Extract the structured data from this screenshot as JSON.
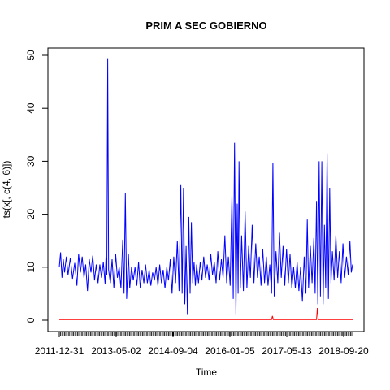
{
  "chart_data": {
    "type": "line",
    "title": "PRIM A SEC GOBIERNO",
    "xlabel": "Time",
    "ylabel": "ts(x[, c(4, 6)])",
    "ylim": [
      0,
      50
    ],
    "y_ticks": [
      0,
      10,
      20,
      30,
      40,
      50
    ],
    "x_tick_labels": [
      "2011-12-31",
      "2013-05-02",
      "2014-09-04",
      "2016-01-05",
      "2017-05-13",
      "2018-09-20"
    ],
    "legend": "none",
    "grid": false,
    "series": [
      {
        "color": "#0000ff",
        "points": [
          [
            0.0,
            10.0
          ],
          [
            0.03,
            12.8
          ],
          [
            0.06,
            8.0
          ],
          [
            0.09,
            11.5
          ],
          [
            0.12,
            9.0
          ],
          [
            0.16,
            12.0
          ],
          [
            0.2,
            8.5
          ],
          [
            0.25,
            11.8
          ],
          [
            0.3,
            7.8
          ],
          [
            0.35,
            10.8
          ],
          [
            0.4,
            6.5
          ],
          [
            0.44,
            12.5
          ],
          [
            0.48,
            9.0
          ],
          [
            0.52,
            12.0
          ],
          [
            0.56,
            8.0
          ],
          [
            0.6,
            10.5
          ],
          [
            0.64,
            5.5
          ],
          [
            0.68,
            11.5
          ],
          [
            0.72,
            9.0
          ],
          [
            0.76,
            12.2
          ],
          [
            0.8,
            7.5
          ],
          [
            0.84,
            10.5
          ],
          [
            0.88,
            7.0
          ],
          [
            0.92,
            10.5
          ],
          [
            0.96,
            8.0
          ],
          [
            1.0,
            11.0
          ],
          [
            1.04,
            6.8
          ],
          [
            1.06,
            12.0
          ],
          [
            1.08,
            8.5
          ],
          [
            1.1,
            49.3
          ],
          [
            1.12,
            9.5
          ],
          [
            1.16,
            7.0
          ],
          [
            1.2,
            11.5
          ],
          [
            1.24,
            6.0
          ],
          [
            1.28,
            12.5
          ],
          [
            1.32,
            8.0
          ],
          [
            1.36,
            10.0
          ],
          [
            1.4,
            6.0
          ],
          [
            1.44,
            15.2
          ],
          [
            1.47,
            5.0
          ],
          [
            1.5,
            24.0
          ],
          [
            1.53,
            4.0
          ],
          [
            1.57,
            12.5
          ],
          [
            1.6,
            6.0
          ],
          [
            1.64,
            10.0
          ],
          [
            1.68,
            7.5
          ],
          [
            1.72,
            10.0
          ],
          [
            1.76,
            6.5
          ],
          [
            1.8,
            11.0
          ],
          [
            1.84,
            6.0
          ],
          [
            1.88,
            9.5
          ],
          [
            1.92,
            7.0
          ],
          [
            1.96,
            10.5
          ],
          [
            2.0,
            7.0
          ],
          [
            2.04,
            9.5
          ],
          [
            2.08,
            6.5
          ],
          [
            2.12,
            9.0
          ],
          [
            2.16,
            7.5
          ],
          [
            2.2,
            10.0
          ],
          [
            2.24,
            6.5
          ],
          [
            2.28,
            10.5
          ],
          [
            2.32,
            7.0
          ],
          [
            2.36,
            9.5
          ],
          [
            2.4,
            6.0
          ],
          [
            2.44,
            10.0
          ],
          [
            2.48,
            7.5
          ],
          [
            2.52,
            11.5
          ],
          [
            2.56,
            5.0
          ],
          [
            2.6,
            12.0
          ],
          [
            2.64,
            7.0
          ],
          [
            2.68,
            15.0
          ],
          [
            2.72,
            5.5
          ],
          [
            2.76,
            25.5
          ],
          [
            2.79,
            5.0
          ],
          [
            2.82,
            25.0
          ],
          [
            2.85,
            3.0
          ],
          [
            2.88,
            14.0
          ],
          [
            2.91,
            1.0
          ],
          [
            2.94,
            19.5
          ],
          [
            2.97,
            5.0
          ],
          [
            3.0,
            18.5
          ],
          [
            3.03,
            7.0
          ],
          [
            3.06,
            11.0
          ],
          [
            3.09,
            6.5
          ],
          [
            3.12,
            10.5
          ],
          [
            3.16,
            7.0
          ],
          [
            3.2,
            11.0
          ],
          [
            3.24,
            7.5
          ],
          [
            3.28,
            12.0
          ],
          [
            3.32,
            8.0
          ],
          [
            3.36,
            10.5
          ],
          [
            3.4,
            7.5
          ],
          [
            3.44,
            12.5
          ],
          [
            3.48,
            8.5
          ],
          [
            3.52,
            11.0
          ],
          [
            3.56,
            7.0
          ],
          [
            3.6,
            13.0
          ],
          [
            3.64,
            7.5
          ],
          [
            3.68,
            11.5
          ],
          [
            3.72,
            8.0
          ],
          [
            3.76,
            16.0
          ],
          [
            3.8,
            7.0
          ],
          [
            3.84,
            12.0
          ],
          [
            3.88,
            6.5
          ],
          [
            3.92,
            23.5
          ],
          [
            3.95,
            4.0
          ],
          [
            3.98,
            33.5
          ],
          [
            4.01,
            1.0
          ],
          [
            4.04,
            22.0
          ],
          [
            4.06,
            5.0
          ],
          [
            4.08,
            30.0
          ],
          [
            4.11,
            6.0
          ],
          [
            4.14,
            16.0
          ],
          [
            4.18,
            5.5
          ],
          [
            4.22,
            20.5
          ],
          [
            4.26,
            6.0
          ],
          [
            4.3,
            14.0
          ],
          [
            4.34,
            8.0
          ],
          [
            4.38,
            18.0
          ],
          [
            4.42,
            7.0
          ],
          [
            4.46,
            14.5
          ],
          [
            4.5,
            8.0
          ],
          [
            4.54,
            12.0
          ],
          [
            4.58,
            6.5
          ],
          [
            4.62,
            13.5
          ],
          [
            4.66,
            7.0
          ],
          [
            4.7,
            12.0
          ],
          [
            4.74,
            6.5
          ],
          [
            4.78,
            10.5
          ],
          [
            4.82,
            5.0
          ],
          [
            4.85,
            29.7
          ],
          [
            4.88,
            4.5
          ],
          [
            4.92,
            13.0
          ],
          [
            4.96,
            7.0
          ],
          [
            5.0,
            16.5
          ],
          [
            5.04,
            8.0
          ],
          [
            5.08,
            14.0
          ],
          [
            5.12,
            6.5
          ],
          [
            5.16,
            13.5
          ],
          [
            5.2,
            7.0
          ],
          [
            5.24,
            12.5
          ],
          [
            5.28,
            6.0
          ],
          [
            5.32,
            10.0
          ],
          [
            5.36,
            6.0
          ],
          [
            5.4,
            11.0
          ],
          [
            5.44,
            5.5
          ],
          [
            5.48,
            10.0
          ],
          [
            5.52,
            3.5
          ],
          [
            5.56,
            12.0
          ],
          [
            5.6,
            5.0
          ],
          [
            5.63,
            19.0
          ],
          [
            5.66,
            6.0
          ],
          [
            5.7,
            14.0
          ],
          [
            5.74,
            7.0
          ],
          [
            5.78,
            15.5
          ],
          [
            5.81,
            5.0
          ],
          [
            5.84,
            22.5
          ],
          [
            5.87,
            3.0
          ],
          [
            5.9,
            30.0
          ],
          [
            5.93,
            4.5
          ],
          [
            5.96,
            30.0
          ],
          [
            5.99,
            3.0
          ],
          [
            6.02,
            18.0
          ],
          [
            6.05,
            6.0
          ],
          [
            6.08,
            31.5
          ],
          [
            6.11,
            4.0
          ],
          [
            6.14,
            25.0
          ],
          [
            6.17,
            7.0
          ],
          [
            6.2,
            13.0
          ],
          [
            6.24,
            7.5
          ],
          [
            6.28,
            16.0
          ],
          [
            6.32,
            8.0
          ],
          [
            6.36,
            13.0
          ],
          [
            6.4,
            7.0
          ],
          [
            6.44,
            14.5
          ],
          [
            6.48,
            8.0
          ],
          [
            6.52,
            12.0
          ],
          [
            6.56,
            8.5
          ],
          [
            6.6,
            15.0
          ],
          [
            6.63,
            9.0
          ],
          [
            6.66,
            10.5
          ]
        ]
      },
      {
        "color": "#ff0000",
        "points": [
          [
            0.0,
            0.1
          ],
          [
            4.82,
            0.1
          ],
          [
            4.84,
            0.8
          ],
          [
            4.86,
            0.1
          ],
          [
            5.84,
            0.1
          ],
          [
            5.86,
            2.3
          ],
          [
            5.88,
            0.1
          ],
          [
            6.66,
            0.1
          ]
        ]
      }
    ]
  }
}
